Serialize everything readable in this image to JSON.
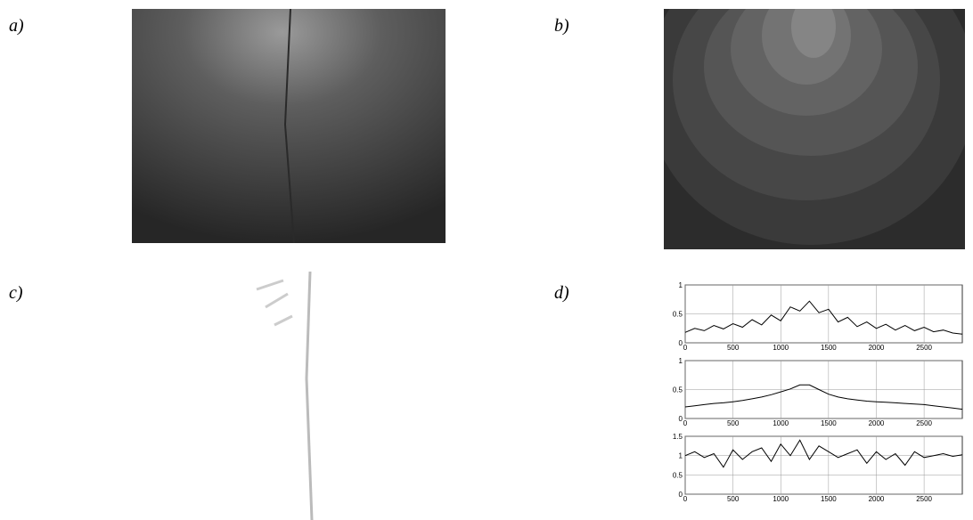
{
  "panels": {
    "a": {
      "label": "a)"
    },
    "b": {
      "label": "b)"
    },
    "c": {
      "label": "c)"
    },
    "d": {
      "label": "d)"
    }
  },
  "chart_data": [
    {
      "type": "line",
      "grid": true,
      "xlim": [
        0,
        2900
      ],
      "ylim": [
        0,
        1
      ],
      "xticks": [
        0,
        500,
        1000,
        1500,
        2000,
        2500
      ],
      "yticks": [
        0,
        0.5,
        1
      ],
      "x": [
        0,
        100,
        200,
        300,
        400,
        500,
        600,
        700,
        800,
        900,
        1000,
        1100,
        1200,
        1300,
        1400,
        1500,
        1600,
        1700,
        1800,
        1900,
        2000,
        2100,
        2200,
        2300,
        2400,
        2500,
        2600,
        2700,
        2800,
        2900
      ],
      "series": [
        {
          "color": "#000000",
          "values": [
            0.18,
            0.25,
            0.21,
            0.3,
            0.24,
            0.33,
            0.27,
            0.4,
            0.31,
            0.48,
            0.38,
            0.62,
            0.55,
            0.72,
            0.52,
            0.58,
            0.36,
            0.44,
            0.28,
            0.36,
            0.25,
            0.32,
            0.22,
            0.3,
            0.21,
            0.27,
            0.19,
            0.22,
            0.17,
            0.15
          ]
        }
      ]
    },
    {
      "type": "line",
      "grid": true,
      "xlim": [
        0,
        2900
      ],
      "ylim": [
        0,
        1
      ],
      "xticks": [
        0,
        500,
        1000,
        1500,
        2000,
        2500
      ],
      "yticks": [
        0,
        0.5,
        1
      ],
      "x": [
        0,
        100,
        200,
        300,
        400,
        500,
        600,
        700,
        800,
        900,
        1000,
        1100,
        1200,
        1300,
        1400,
        1500,
        1600,
        1700,
        1800,
        1900,
        2000,
        2100,
        2200,
        2300,
        2400,
        2500,
        2600,
        2700,
        2800,
        2900
      ],
      "series": [
        {
          "color": "#000000",
          "values": [
            0.2,
            0.22,
            0.24,
            0.26,
            0.27,
            0.29,
            0.31,
            0.34,
            0.37,
            0.41,
            0.46,
            0.51,
            0.58,
            0.58,
            0.5,
            0.42,
            0.37,
            0.34,
            0.32,
            0.3,
            0.29,
            0.28,
            0.27,
            0.26,
            0.25,
            0.24,
            0.22,
            0.2,
            0.18,
            0.16
          ]
        }
      ]
    },
    {
      "type": "line",
      "grid": true,
      "xlim": [
        0,
        2900
      ],
      "ylim": [
        0,
        1.5
      ],
      "xticks": [
        0,
        500,
        1000,
        1500,
        2000,
        2500
      ],
      "yticks": [
        0,
        0.5,
        1,
        1.5
      ],
      "x": [
        0,
        100,
        200,
        300,
        400,
        500,
        600,
        700,
        800,
        900,
        1000,
        1100,
        1200,
        1300,
        1400,
        1500,
        1600,
        1700,
        1800,
        1900,
        2000,
        2100,
        2200,
        2300,
        2400,
        2500,
        2600,
        2700,
        2800,
        2900
      ],
      "series": [
        {
          "color": "#000000",
          "values": [
            1.0,
            1.1,
            0.95,
            1.05,
            0.7,
            1.15,
            0.9,
            1.1,
            1.2,
            0.85,
            1.3,
            1.0,
            1.4,
            0.9,
            1.25,
            1.1,
            0.95,
            1.05,
            1.15,
            0.8,
            1.1,
            0.9,
            1.05,
            0.75,
            1.1,
            0.95,
            1.0,
            1.05,
            0.98,
            1.02
          ]
        }
      ]
    }
  ]
}
